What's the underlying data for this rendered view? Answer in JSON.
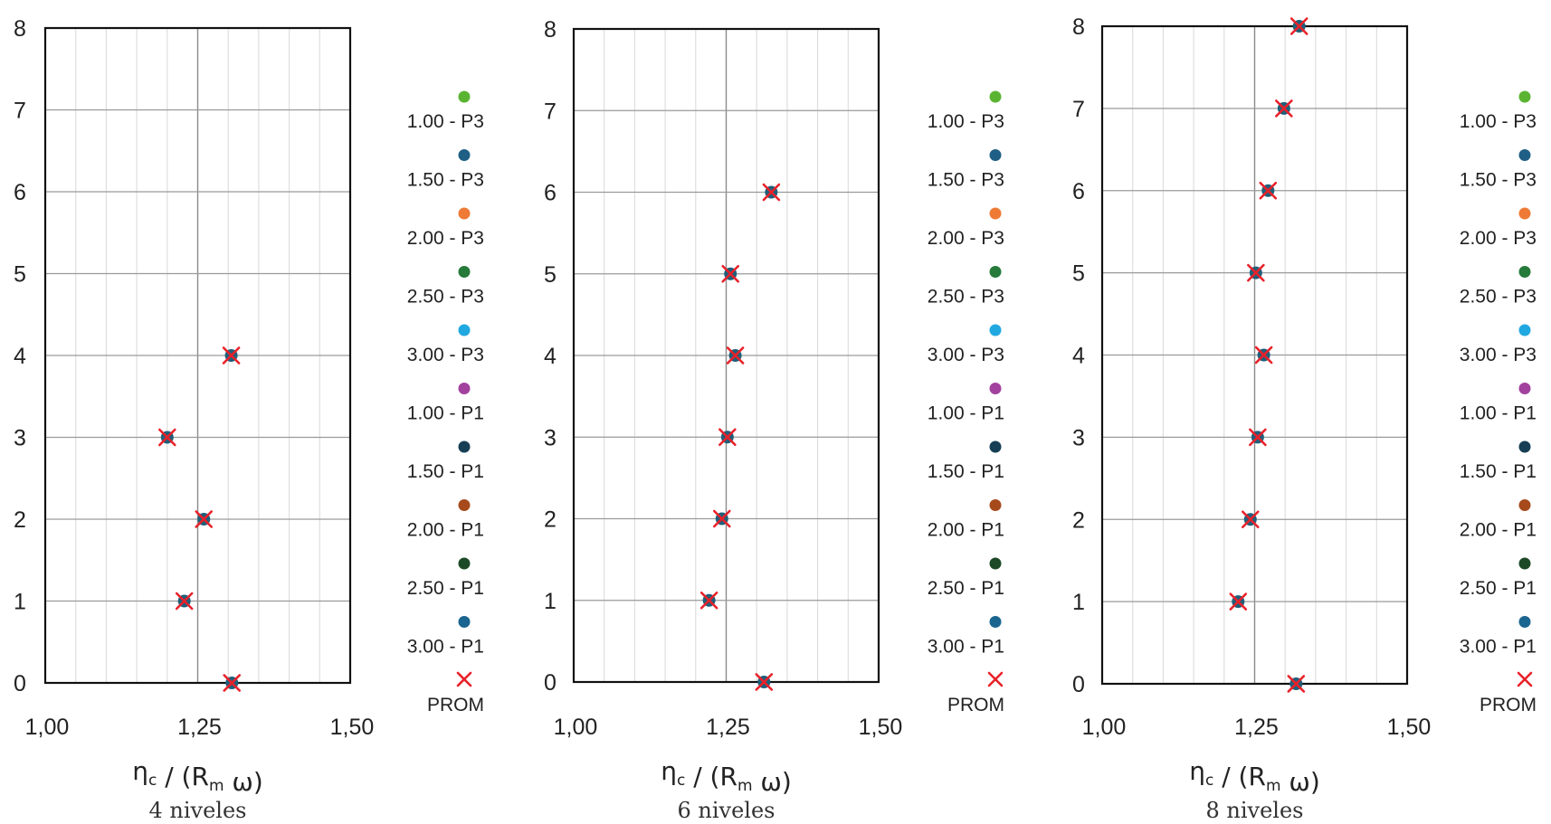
{
  "legend": [
    {
      "label": "1.00 - P3",
      "color": "#5ab432",
      "marker": "circle"
    },
    {
      "label": "1.50 - P3",
      "color": "#1f5f85",
      "marker": "circle"
    },
    {
      "label": "2.00 - P3",
      "color": "#ef7a35",
      "marker": "circle"
    },
    {
      "label": "2.50 - P3",
      "color": "#267a3a",
      "marker": "circle"
    },
    {
      "label": "3.00 - P3",
      "color": "#21a8e0",
      "marker": "circle"
    },
    {
      "label": "1.00 - P1",
      "color": "#a2429e",
      "marker": "circle"
    },
    {
      "label": "1.50 - P1",
      "color": "#163e54",
      "marker": "circle"
    },
    {
      "label": "2.00 - P1",
      "color": "#a64a1c",
      "marker": "circle"
    },
    {
      "label": "2.50 - P1",
      "color": "#1d4a26",
      "marker": "circle"
    },
    {
      "label": "3.00 - P1",
      "color": "#1b6690",
      "marker": "circle"
    },
    {
      "label": "PROM",
      "color": "#e8212a",
      "marker": "x-icon"
    }
  ],
  "chart_data": [
    {
      "type": "scatter",
      "caption": "4 niveles",
      "xlabel": {
        "main": "η",
        "sub1": "c",
        "mid": " / (R",
        "sub2": "m",
        "tail": " ω)"
      },
      "ylabel": "",
      "xlim": [
        1.0,
        1.5
      ],
      "ylim": [
        0,
        8
      ],
      "xticks": [
        "1,00",
        "1,25",
        "1,50"
      ],
      "xtick_values": [
        1.0,
        1.25,
        1.5
      ],
      "yticks": [
        "0",
        "1",
        "2",
        "3",
        "4",
        "5",
        "6",
        "7",
        "8"
      ],
      "grid": true,
      "legend_position": "right",
      "points_series_color": "#1f5f7a",
      "prom_color": "#e8212a",
      "x": [
        1.306,
        1.228,
        1.26,
        1.2,
        1.305
      ],
      "y": [
        0,
        1,
        2,
        3,
        4
      ]
    },
    {
      "type": "scatter",
      "caption": "6 niveles",
      "xlabel": {
        "main": "η",
        "sub1": "c",
        "mid": " / (R",
        "sub2": "m",
        "tail": " ω)"
      },
      "ylabel": "",
      "xlim": [
        1.0,
        1.5
      ],
      "ylim": [
        0,
        8
      ],
      "xticks": [
        "1,00",
        "1,25",
        "1,50"
      ],
      "xtick_values": [
        1.0,
        1.25,
        1.5
      ],
      "yticks": [
        "0",
        "1",
        "2",
        "3",
        "4",
        "5",
        "6",
        "7",
        "8"
      ],
      "grid": true,
      "legend_position": "right",
      "points_series_color": "#1f5f7a",
      "prom_color": "#e8212a",
      "x": [
        1.312,
        1.222,
        1.243,
        1.252,
        1.265,
        1.257,
        1.324
      ],
      "y": [
        0,
        1,
        2,
        3,
        4,
        5,
        6
      ]
    },
    {
      "type": "scatter",
      "caption": "8 niveles",
      "xlabel": {
        "main": "η",
        "sub1": "c",
        "mid": " / (R",
        "sub2": "m",
        "tail": " ω)"
      },
      "ylabel": "",
      "xlim": [
        1.0,
        1.5
      ],
      "ylim": [
        0,
        8
      ],
      "xticks": [
        "1,00",
        "1,25",
        "1,50"
      ],
      "xtick_values": [
        1.0,
        1.25,
        1.5
      ],
      "yticks": [
        "0",
        "1",
        "2",
        "3",
        "4",
        "5",
        "6",
        "7",
        "8"
      ],
      "grid": true,
      "legend_position": "right",
      "points_series_color": "#1f5f7a",
      "prom_color": "#e8212a",
      "x": [
        1.318,
        1.223,
        1.243,
        1.255,
        1.265,
        1.252,
        1.272,
        1.298,
        1.323
      ],
      "y": [
        0,
        1,
        2,
        3,
        4,
        5,
        6,
        7,
        8
      ]
    }
  ]
}
